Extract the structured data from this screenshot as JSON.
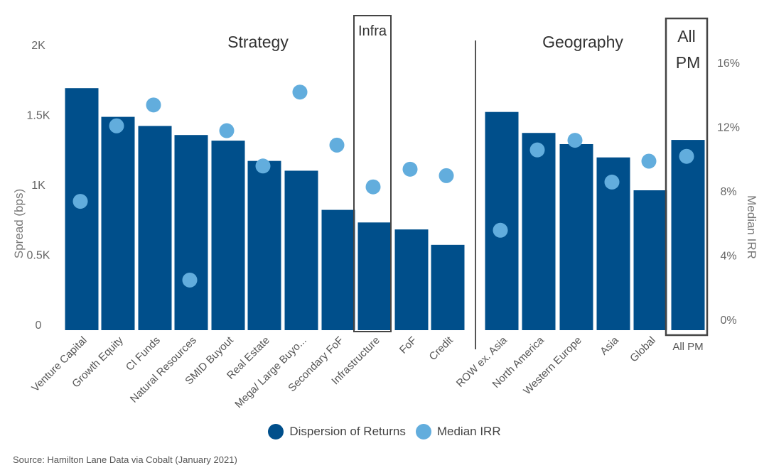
{
  "chart_data": {
    "type": "bar",
    "title": "",
    "groups": [
      "Strategy",
      "Geography"
    ],
    "highlight_labels": [
      "Infra",
      "All PM"
    ],
    "categories": [
      "Venture Capital",
      "Growth Equity",
      "CI Funds",
      "Natural Resources",
      "SMID Buyout",
      "Real Estate",
      "Mega/ Large Buyo...",
      "Secondary FoF",
      "Infrastructure",
      "FoF",
      "Credit",
      "ROW ex. Asia",
      "North America",
      "Western Europe",
      "Asia",
      "Global",
      "All PM"
    ],
    "series": [
      {
        "name": "Dispersion of Returns",
        "axis": "left",
        "color": "#004F8B",
        "values": [
          1730,
          1525,
          1460,
          1395,
          1355,
          1210,
          1140,
          860,
          770,
          720,
          610,
          1560,
          1410,
          1330,
          1235,
          1000,
          1360
        ]
      },
      {
        "name": "Median IRR",
        "axis": "right",
        "color": "#62ADDD",
        "values": [
          7.4,
          12.1,
          13.4,
          2.5,
          11.8,
          9.6,
          14.2,
          10.9,
          8.3,
          9.4,
          9.0,
          5.6,
          10.6,
          11.2,
          8.6,
          9.9,
          10.2
        ]
      }
    ],
    "ylabel": "Spread (bps)",
    "ylabel_right": "Median IRR",
    "ylim": [
      0,
      2000
    ],
    "ylim_right": [
      0,
      16
    ],
    "yticks": [
      "0",
      "0.5K",
      "1K",
      "1.5K",
      "2K"
    ],
    "yticks_right": [
      "0%",
      "4%",
      "8%",
      "12%",
      "16%"
    ],
    "legend": [
      "Dispersion of Returns",
      "Median IRR"
    ],
    "source": "Source: Hamilton Lane Data via Cobalt (January 2021)"
  }
}
